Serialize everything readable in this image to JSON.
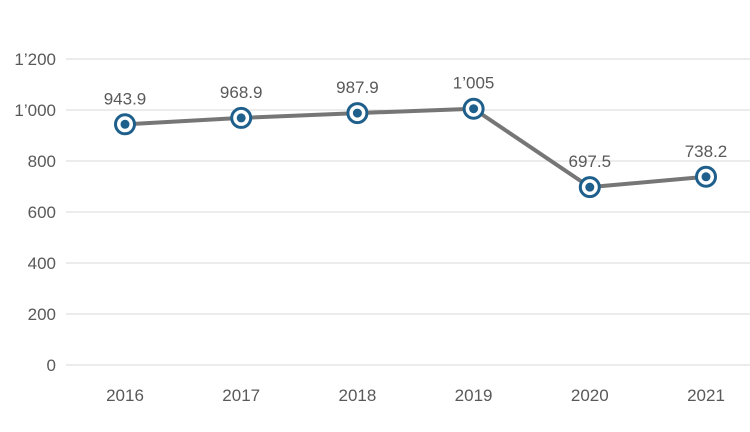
{
  "chart_data": {
    "type": "line",
    "title": "",
    "xlabel": "",
    "ylabel": "",
    "categories": [
      "2016",
      "2017",
      "2018",
      "2019",
      "2020",
      "2021"
    ],
    "series": [
      {
        "values": [
          943.9,
          968.9,
          987.9,
          1005,
          697.5,
          738.2
        ],
        "data_labels": [
          "943.9",
          "968.9",
          "987.9",
          "1’005",
          "697.5",
          "738.2"
        ]
      }
    ],
    "ylim": [
      0,
      1200
    ],
    "y_ticks": [
      0,
      200,
      400,
      600,
      800,
      1000,
      1200
    ],
    "y_tick_labels": [
      "0",
      "200",
      "400",
      "600",
      "800",
      "1’000",
      "1’200"
    ],
    "grid": true,
    "legend": "none",
    "colors": {
      "line": "#767676",
      "marker_ring": "#1f5f8b",
      "marker_fill": "#ffffff",
      "grid": "#d9d9d9",
      "text": "#595959"
    }
  }
}
